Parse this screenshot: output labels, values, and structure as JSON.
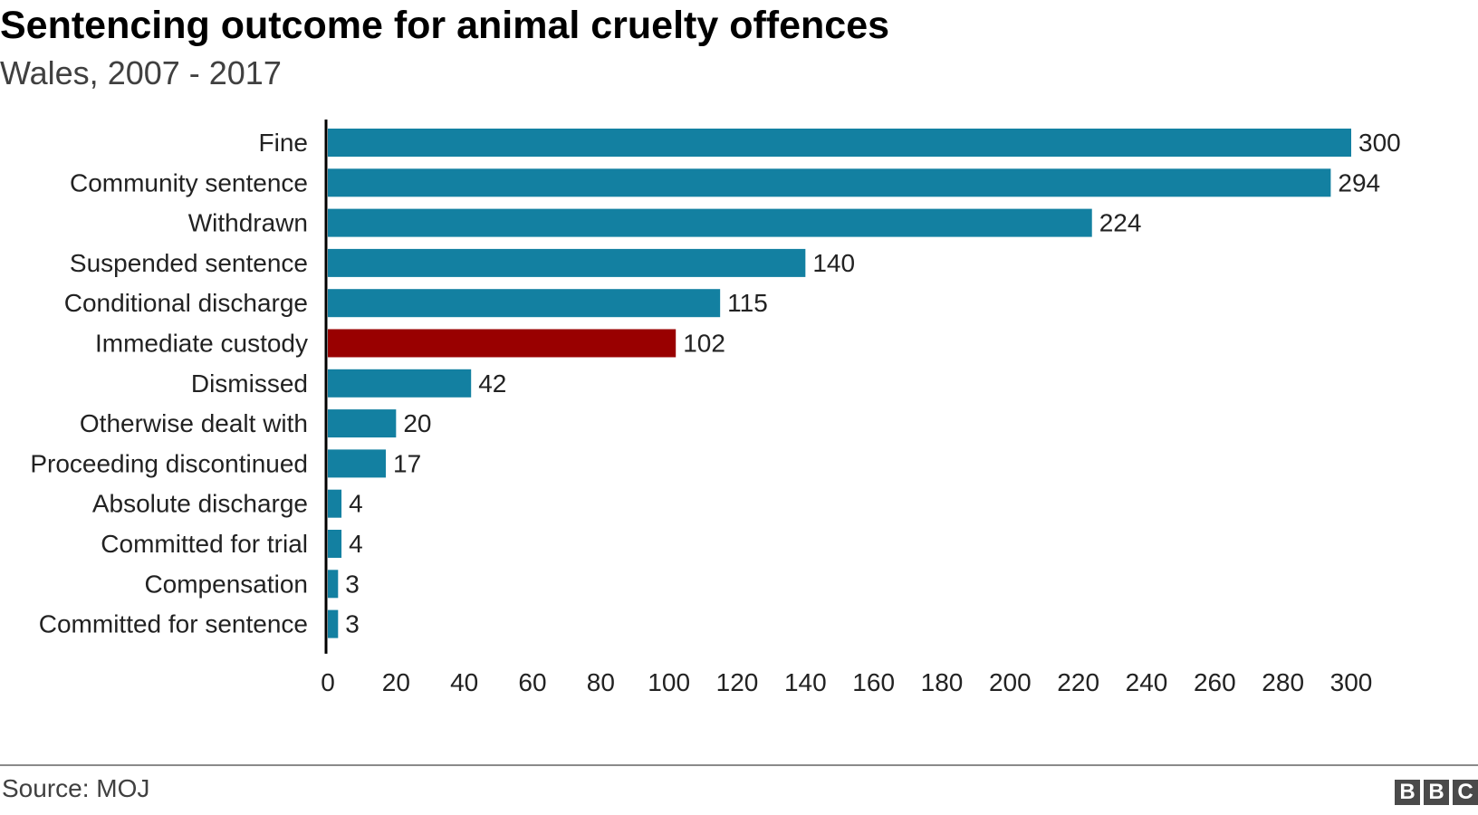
{
  "chart_data": {
    "type": "bar",
    "orientation": "horizontal",
    "title": "Sentencing outcome for animal cruelty offences",
    "subtitle": "Wales, 2007 - 2017",
    "categories": [
      "Fine",
      "Community sentence",
      "Withdrawn",
      "Suspended sentence",
      "Conditional discharge",
      "Immediate custody",
      "Dismissed",
      "Otherwise dealt with",
      "Proceeding discontinued",
      "Absolute discharge",
      "Committed for trial",
      "Compensation",
      "Committed for sentence"
    ],
    "values": [
      300,
      294,
      224,
      140,
      115,
      102,
      42,
      20,
      17,
      4,
      4,
      3,
      3
    ],
    "highlight_category": "Immediate custody",
    "xlim": [
      0,
      300
    ],
    "xticks": [
      0,
      20,
      40,
      60,
      80,
      100,
      120,
      140,
      160,
      180,
      200,
      220,
      240,
      260,
      280,
      300
    ],
    "grid": false,
    "data_labels": true,
    "colors": {
      "bar": "#1380A1",
      "highlight": "#990000",
      "axis": "#000000",
      "text": "#222222"
    }
  },
  "footer": {
    "source": "Source: MOJ",
    "logo_letters": [
      "B",
      "B",
      "C"
    ]
  }
}
